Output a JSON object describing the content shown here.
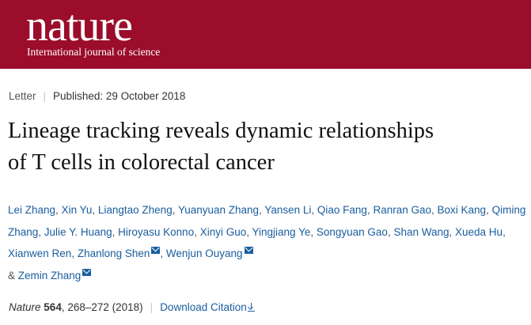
{
  "masthead": {
    "logo": "nature",
    "tagline": "International journal of science"
  },
  "meta": {
    "type": "Letter",
    "published": "Published: 29 October 2018"
  },
  "article": {
    "title_line1": "Lineage tracking reveals dynamic relationships",
    "title_line2": "of T cells in colorectal cancer"
  },
  "authors": [
    "Lei Zhang",
    "Xin Yu",
    "Liangtao Zheng",
    "Yuanyuan Zhang",
    "Yansen Li",
    "Qiao Fang",
    "Ranran Gao",
    "Boxi Kang",
    "Qiming Zhang",
    "Julie Y. Huang",
    "Hiroyasu Konno",
    "Xinyi Guo",
    "Yingjiang Ye",
    "Songyuan Gao",
    "Shan Wang",
    "Xueda Hu",
    "Xianwen Ren",
    "Zhanlong Shen",
    "Wenjun Ouyang",
    "Zemin Zhang"
  ],
  "authors_ampersand": "&",
  "citation": {
    "journal": "Nature",
    "volume": "564",
    "pages": ", 268–272 (2018)",
    "download_label": "Download Citation"
  },
  "colors": {
    "brand": "#9b0d2b",
    "link": "#1a5d9e"
  },
  "icons": {
    "email": "envelope-icon",
    "download": "download-arrow-icon"
  }
}
